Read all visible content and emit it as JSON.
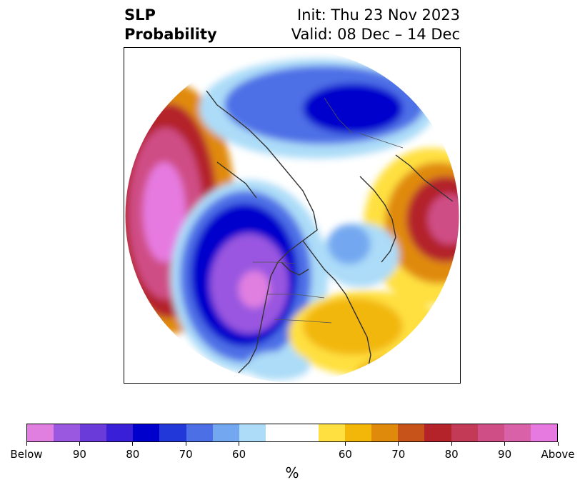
{
  "title": {
    "left_line1": "SLP",
    "left_line2": "Probability",
    "right_line1": "Init: Thu 23 Nov 2023",
    "right_line2": "Valid: 08 Dec – 14 Dec"
  },
  "map": {
    "projection": "north-polar-stereographic",
    "background": "#ffffff",
    "coastline_color": "#333333",
    "border_color": "#555555"
  },
  "colorbar": {
    "colors": [
      "#e07fe0",
      "#9a57e0",
      "#6a3bd8",
      "#3a1fd8",
      "#0000cc",
      "#2338d8",
      "#4d6fe6",
      "#73a8f0",
      "#acdcf8",
      "#ffffff",
      "#ffffff",
      "#ffe040",
      "#f2b708",
      "#e08a0c",
      "#c7531a",
      "#b4232a",
      "#c23a55",
      "#cf4e85",
      "#d861a8",
      "#e67ae0"
    ],
    "tick_labels": [
      "Below",
      "90",
      "80",
      "70",
      "60",
      "60",
      "70",
      "80",
      "90",
      "Above"
    ],
    "label": "%"
  }
}
